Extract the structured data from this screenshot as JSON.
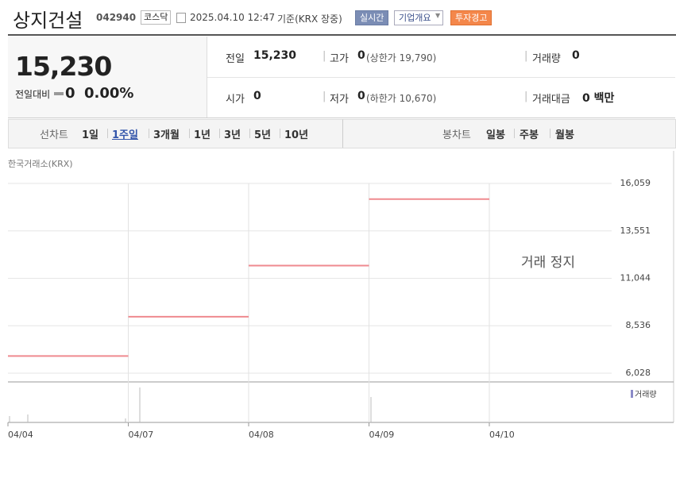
{
  "header": {
    "title": "상지건설",
    "code": "042940",
    "market": "코스닥",
    "time": "2025.04.10 12:47",
    "basis": "기준(KRX 장중)",
    "buttons": [
      "실시간",
      "기업개요",
      "투자경고"
    ]
  },
  "summary": {
    "price": "15,230",
    "change_label": "전일대비",
    "change": "0",
    "change_rate": "0.00%",
    "items": [
      {
        "label": "전일",
        "value": "15,230"
      },
      {
        "label": "고가",
        "value": "0",
        "note": "(상한가 19,790)"
      },
      {
        "label": "거래량",
        "value": "0"
      },
      {
        "label": "시가",
        "value": "0"
      },
      {
        "label": "저가",
        "value": "0",
        "note": "(하한가 10,670)"
      },
      {
        "label": "거래대금",
        "value": "0 백만"
      }
    ]
  },
  "tabs": {
    "line_chart": "선차트",
    "periods": [
      "1일",
      "1주일",
      "3개월",
      "1년",
      "3년",
      "5년",
      "10년"
    ],
    "selected_index": 1,
    "candle_chart": "봉차트",
    "candles": [
      "일봉",
      "주봉",
      "월봉"
    ]
  },
  "chart": {
    "type": "step",
    "source": "한국거래소(KRX)",
    "annotation": "거래 정지",
    "volume_legend": "거래량",
    "categories": [
      "04/04",
      "04/07",
      "04/08",
      "04/09",
      "04/10"
    ],
    "values": [
      6933,
      9013,
      11716,
      15230,
      null
    ],
    "color": "#ef8a8f",
    "ylim": [
      5566,
      16059
    ],
    "yticks": [
      {
        "value": 6028,
        "label": "6,028"
      },
      {
        "value": 8536,
        "label": "8,536"
      },
      {
        "value": 11044,
        "label": "11,044"
      },
      {
        "value": 13551,
        "label": "13,551"
      },
      {
        "value": 16059,
        "label": "16,059"
      }
    ],
    "grid": true
  }
}
